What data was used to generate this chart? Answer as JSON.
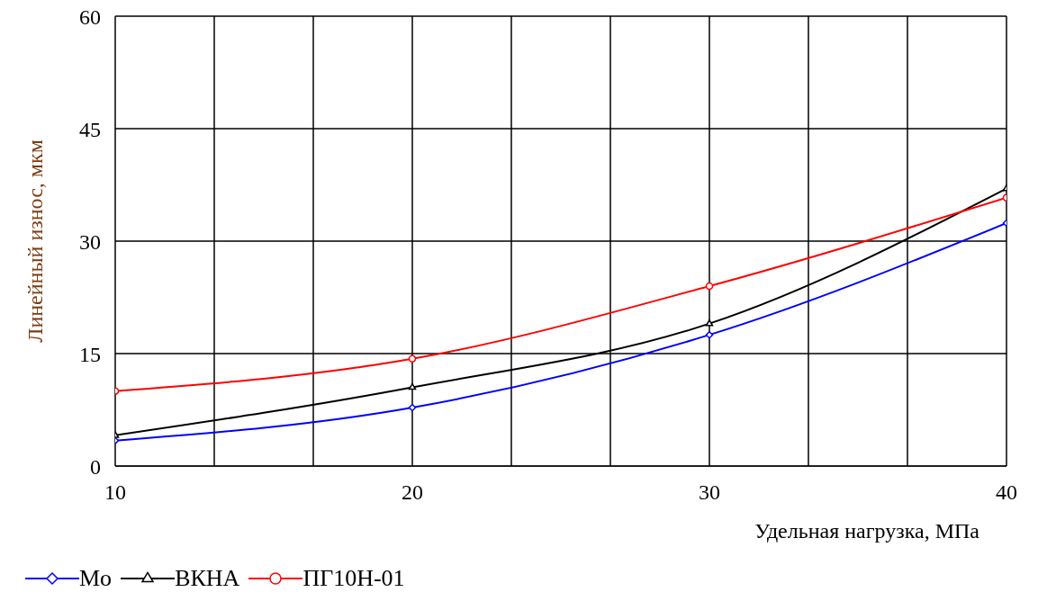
{
  "chart_data": {
    "type": "line",
    "xlabel": "Удельная нагрузка, МПа",
    "ylabel": "Линейный износ, мкм",
    "x": [
      10,
      20,
      30,
      40
    ],
    "xlim": [
      10,
      40
    ],
    "xticks": [
      10,
      {
        "value": 13.333,
        "label": null
      },
      {
        "value": 16.667,
        "label": null
      },
      20,
      {
        "value": 23.333,
        "label": null
      },
      {
        "value": 26.667,
        "label": null
      },
      30,
      {
        "value": 33.333,
        "label": null
      },
      {
        "value": 36.667,
        "label": null
      },
      40
    ],
    "ylim": [
      0,
      60
    ],
    "yticks": [
      0,
      15,
      30,
      45,
      60
    ],
    "grid": true,
    "legend": "bottom left",
    "line_style": "solid",
    "series": [
      {
        "name": "Mo",
        "color": "#0000ff",
        "marker": "diamond",
        "values": [
          3.4,
          7.8,
          17.5,
          32.4
        ]
      },
      {
        "name": "ВКНА",
        "color": "#000000",
        "marker": "triangle",
        "values": [
          4.1,
          10.5,
          19,
          37
        ]
      },
      {
        "name": "ПГ10Н-01",
        "color": "#ff0000",
        "marker": "circle",
        "values": [
          10,
          14.3,
          24,
          35.8
        ]
      }
    ]
  }
}
